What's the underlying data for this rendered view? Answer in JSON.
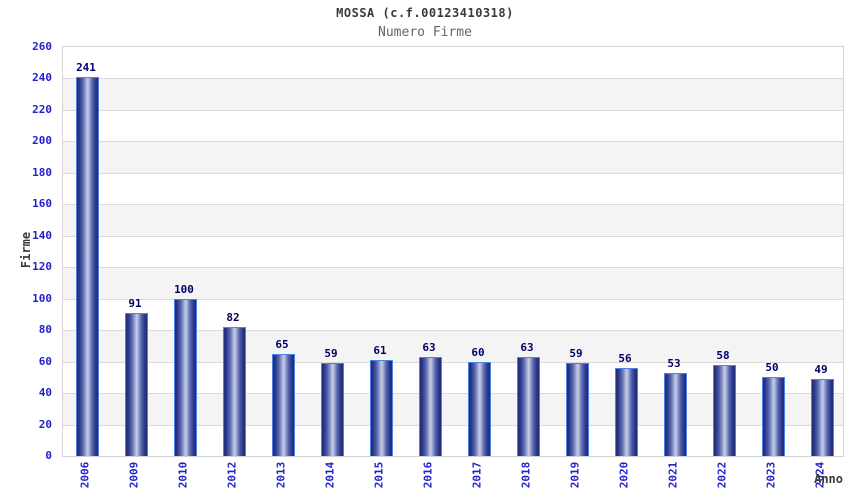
{
  "chart_data": {
    "type": "bar",
    "title": "MOSSA (c.f.00123410318)",
    "subtitle": "Numero Firme",
    "xlabel": "Anno",
    "ylabel": "Firme",
    "categories": [
      "2006",
      "2009",
      "2010",
      "2012",
      "2013",
      "2014",
      "2015",
      "2016",
      "2017",
      "2018",
      "2019",
      "2020",
      "2021",
      "2022",
      "2023",
      "2024"
    ],
    "values": [
      241,
      91,
      100,
      82,
      65,
      59,
      61,
      63,
      60,
      63,
      59,
      56,
      53,
      58,
      50,
      49
    ],
    "ylim": [
      0,
      260
    ],
    "ytick_step": 20,
    "grid": "horizontal-bands",
    "legend_position": "none"
  },
  "colors": {
    "axis_tick_blue": "#2222cc",
    "value_label_navy": "#000066",
    "bar_border_blue": "#4e82e8",
    "bar_dark": "#202b76",
    "bar_light": "#c7cdea",
    "band_gray": "#f4f4f4",
    "band_white": "#ffffff",
    "gridline_gray": "#dadada",
    "title_gray": "#3a3a3a",
    "subtitle_gray": "#666666"
  }
}
